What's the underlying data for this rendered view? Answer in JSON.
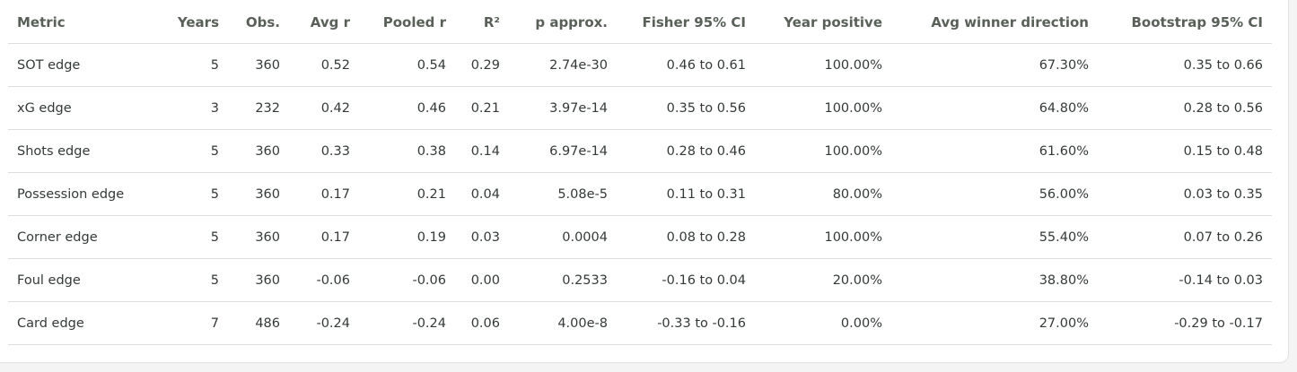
{
  "table": {
    "columns": [
      "Metric",
      "Years",
      "Obs.",
      "Avg r",
      "Pooled r",
      "R²",
      "p approx.",
      "Fisher 95% CI",
      "Year positive",
      "Avg winner direction",
      "Bootstrap 95% CI"
    ],
    "rows": [
      [
        "SOT edge",
        "5",
        "360",
        "0.52",
        "0.54",
        "0.29",
        "2.74e-30",
        "0.46 to 0.61",
        "100.00%",
        "67.30%",
        "0.35 to 0.66"
      ],
      [
        "xG edge",
        "3",
        "232",
        "0.42",
        "0.46",
        "0.21",
        "3.97e-14",
        "0.35 to 0.56",
        "100.00%",
        "64.80%",
        "0.28 to 0.56"
      ],
      [
        "Shots edge",
        "5",
        "360",
        "0.33",
        "0.38",
        "0.14",
        "6.97e-14",
        "0.28 to 0.46",
        "100.00%",
        "61.60%",
        "0.15 to 0.48"
      ],
      [
        "Possession edge",
        "5",
        "360",
        "0.17",
        "0.21",
        "0.04",
        "5.08e-5",
        "0.11 to 0.31",
        "80.00%",
        "56.00%",
        "0.03 to 0.35"
      ],
      [
        "Corner edge",
        "5",
        "360",
        "0.17",
        "0.19",
        "0.03",
        "0.0004",
        "0.08 to 0.28",
        "100.00%",
        "55.40%",
        "0.07 to 0.26"
      ],
      [
        "Foul edge",
        "5",
        "360",
        "-0.06",
        "-0.06",
        "0.00",
        "0.2533",
        "-0.16 to 0.04",
        "20.00%",
        "38.80%",
        "-0.14 to 0.03"
      ],
      [
        "Card edge",
        "7",
        "486",
        "-0.24",
        "-0.24",
        "0.06",
        "4.00e-8",
        "-0.33 to -0.16",
        "0.00%",
        "27.00%",
        "-0.29 to -0.17"
      ]
    ]
  }
}
